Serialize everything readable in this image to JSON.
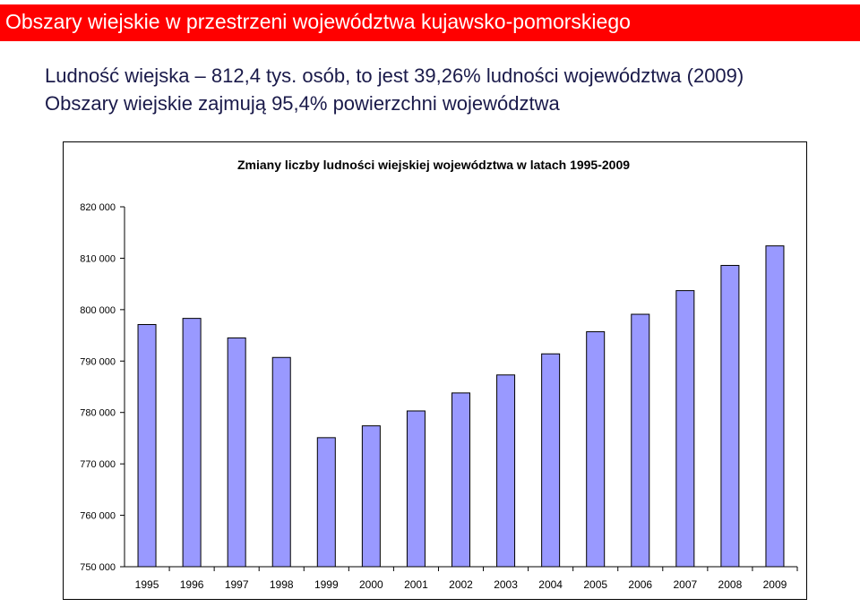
{
  "header": {
    "title": "Obszary wiejskie w przestrzeni województwa kujawsko-pomorskiego"
  },
  "info": {
    "line1": "Ludność wiejska – 812,4 tys. osób, to jest 39,26% ludności województwa (2009)",
    "line2": "Obszary wiejskie zajmują 95,4% powierzchni województwa"
  },
  "colors": {
    "header_bg": "#ff0000",
    "bar_fill": "#9999ff",
    "bar_stroke": "#000000"
  },
  "chart_data": {
    "type": "bar",
    "title": "Zmiany liczby ludności wiejskiej województwa w latach 1995-2009",
    "categories": [
      "1995",
      "1996",
      "1997",
      "1998",
      "1999",
      "2000",
      "2001",
      "2002",
      "2003",
      "2004",
      "2005",
      "2006",
      "2007",
      "2008",
      "2009"
    ],
    "values": [
      797100,
      798300,
      794500,
      790700,
      775100,
      777400,
      780300,
      783800,
      787300,
      791400,
      795700,
      799100,
      803700,
      808600,
      812400
    ],
    "ylim": [
      750000,
      820000
    ],
    "yticks": [
      "820 000",
      "810 000",
      "800 000",
      "790 000",
      "780 000",
      "770 000",
      "760 000",
      "750 000"
    ],
    "ytick_values": [
      820000,
      810000,
      800000,
      790000,
      780000,
      770000,
      760000,
      750000
    ],
    "grid": false,
    "legend": "none"
  }
}
